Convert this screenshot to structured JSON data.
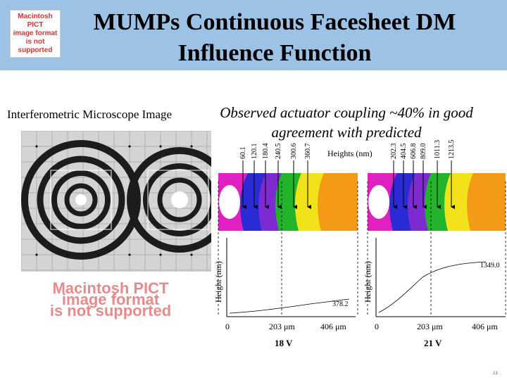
{
  "slide": {
    "title_line1": "MUMPs Continuous Facesheet DM",
    "title_line2": "Influence Function",
    "left_caption": "Interferometric Microscope Image",
    "observation": "Observed actuator coupling ~40% in good agreement with predicted",
    "pict_placeholder": {
      "line1": "Macintosh PICT",
      "line2": "image format",
      "line3": "is not supported"
    },
    "page_number": "13"
  },
  "figure": {
    "heights_label": "Heights (nm)",
    "colors": {
      "magenta": "#e020c0",
      "blue": "#2b2bd6",
      "purple": "#7d2bd0",
      "green": "#22b52b",
      "yellow": "#f2e21a",
      "orange": "#f49a17",
      "white": "#ffffff"
    },
    "left_panel": {
      "height_ticks": [
        "60.1",
        "120.1",
        "180.4",
        "240.5",
        "300.6",
        "360.7"
      ],
      "ylabel": "Height (nm)",
      "peak_value": "378.2",
      "x_ticks": [
        "0",
        "203 μm",
        "406 μm"
      ],
      "voltage": "18 V"
    },
    "right_panel": {
      "height_ticks": [
        "202.3",
        "404.5",
        "606.8",
        "809.0",
        "1011.3",
        "1213.5"
      ],
      "ylabel": "Height (nm)",
      "peak_value": "1349.0",
      "x_ticks": [
        "0",
        "203 μm",
        "406 μm"
      ],
      "voltage": "21 V"
    }
  }
}
